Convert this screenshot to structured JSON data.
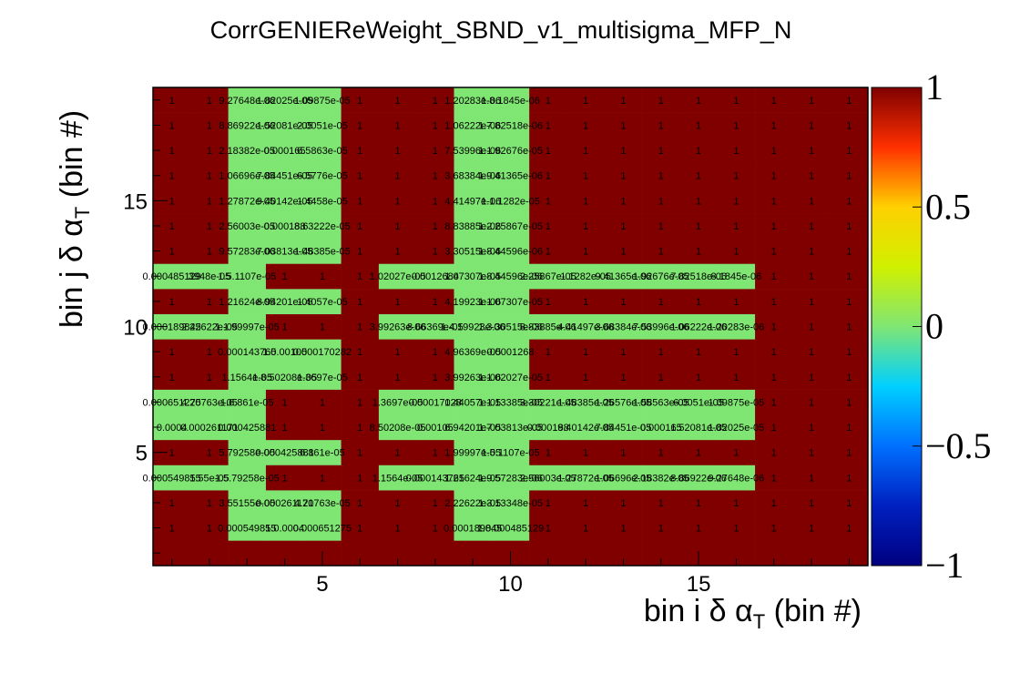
{
  "chart_data": {
    "type": "heatmap",
    "title": "CorrGENIEReWeight_SBND_v1_multisigma_MFP_N",
    "xlabel": "bin i δ α_T (bin #)",
    "ylabel": "bin j δ α_T (bin #)",
    "xlim": [
      0.5,
      19.5
    ],
    "ylim": [
      0.5,
      19.5
    ],
    "zlim": [
      -1,
      1
    ],
    "x_ticks": [
      5,
      10,
      15
    ],
    "y_ticks": [
      5,
      10,
      15
    ],
    "colorbar_ticks": [
      "1",
      "0.5",
      "0",
      "−0.5",
      "−1"
    ],
    "colorbar_tick_values": [
      1,
      0.5,
      0,
      -0.5,
      -1
    ],
    "colors": {
      "high": "#800000",
      "low_abs": "#80e673"
    },
    "rows": [
      {
        "bin": 19,
        "cells": [
          "1",
          "1",
          "9.27648e-06",
          "1.82025e-05",
          "1.09875e-05",
          "1",
          "1",
          "1",
          "1.20283e-06",
          "1.8.1845e-06",
          "1",
          "1",
          "1",
          "1",
          "1",
          "1",
          "1",
          "1",
          "1"
        ]
      },
      {
        "bin": 18,
        "cells": [
          "1",
          "1",
          "8.86922e-06",
          "1.52081e-05",
          "2.0051e-05",
          "1",
          "1",
          "1",
          "1.06222e-06",
          "1.7.82518e-06",
          "1",
          "1",
          "1",
          "1",
          "1",
          "1",
          "1",
          "1",
          "1"
        ]
      },
      {
        "bin": 17,
        "cells": [
          "1",
          "1",
          "2.18382e-05",
          "0.000165",
          "6.5863e-05",
          "1",
          "1",
          "1",
          "7.53996e-06",
          "1.1.92676e-05",
          "1",
          "1",
          "1",
          "1",
          "1",
          "1",
          "1",
          "1",
          "1"
        ]
      },
      {
        "bin": 16,
        "cells": [
          "1",
          "1",
          "1.06696e-05",
          "7.84451e-05",
          "6.5776e-05",
          "1",
          "1",
          "1",
          "3.68384e-06",
          "1.9.41365e-06",
          "1",
          "1",
          "1",
          "1",
          "1",
          "1",
          "1",
          "1",
          "1"
        ]
      },
      {
        "bin": 15,
        "cells": [
          "1",
          "1",
          "1.27872e-05",
          "9.40142e-05",
          "1.4458e-05",
          "1",
          "1",
          "1",
          "4.41497e-06",
          "1.1.1282e-05",
          "1",
          "1",
          "1",
          "1",
          "1",
          "1",
          "1",
          "1",
          "1"
        ]
      },
      {
        "bin": 14,
        "cells": [
          "1",
          "1",
          "2.56003e-05",
          "0.000188",
          "8.63222e-05",
          "1",
          "1",
          "1",
          "8.83885e-06",
          "1.2.25867e-05",
          "1",
          "1",
          "1",
          "1",
          "1",
          "1",
          "1",
          "1",
          "1"
        ]
      },
      {
        "bin": 13,
        "cells": [
          "1",
          "1",
          "9.57283e-06",
          "7.03813e-05",
          "1.48385e-05",
          "1",
          "1",
          "1",
          "3.30515e-06",
          "1.8.44596e-06",
          "1",
          "1",
          "1",
          "1",
          "1",
          "1",
          "1",
          "1",
          "1"
        ]
      },
      {
        "bin": 12,
        "cells": [
          "0.000485129",
          "3948e-05",
          "1.5.1107e-05",
          "1",
          "1",
          "1",
          "1.02027e-05",
          "0.0012684",
          "1.07307e-05",
          "1.8.44596e-06",
          "2.25867e-05",
          "1.1282e-05",
          "9.41365e-06",
          "1.92676e-05",
          "7.82518e-06",
          "8.1845e-06",
          "1",
          "1",
          "1"
        ]
      },
      {
        "bin": 11,
        "cells": [
          "1",
          "1",
          "1.21624e-05",
          "8.94201e-05",
          "1.4057e-05",
          "1",
          "1",
          "1",
          "4.19923e-06",
          "1.1.07307e-05",
          "1",
          "1",
          "1",
          "1",
          "1",
          "1",
          "1",
          "1",
          "1"
        ]
      },
      {
        "bin": 10,
        "cells": [
          "0.000189845",
          "2.22622e-05",
          "1.1.99997e-05",
          "1",
          "1",
          "1",
          "3.99263e-06",
          "8.66369e-05",
          "1.4.19923e-06",
          "1.3.30515e-06",
          "8.83885e-06",
          "4.41497e-06",
          "3.68384e-06",
          "7.53996e-06",
          "1.06222e-06",
          "1.20283e-06",
          "1",
          "1",
          "1"
        ]
      },
      {
        "bin": 9,
        "cells": [
          "1",
          "1",
          "0.000143765",
          "1.0.00105",
          "0.000170282",
          "1",
          "1",
          "1",
          "4.96369e-05",
          "0.0001268",
          "1",
          "1",
          "1",
          "1",
          "1",
          "1",
          "1",
          "1",
          "1"
        ]
      },
      {
        "bin": 8,
        "cells": [
          "1",
          "1",
          "1.1564e-05",
          "1.8.50208e-05",
          "1.3697e-05",
          "1",
          "1",
          "1",
          "3.99263e-06",
          "1.1.02027e-05",
          "1",
          "1",
          "1",
          "1",
          "1",
          "1",
          "1",
          "1",
          "1"
        ]
      },
      {
        "bin": 7,
        "cells": [
          "0.000651275",
          "4.20763e-05",
          "1.6.861e-05",
          "1",
          "1",
          "1",
          "1.3697e-05",
          "0.00017028",
          "1.44057e-05",
          "1.1.13385e-05",
          "3.30221e-05",
          "1.48385e-05",
          "1.26576e-05",
          "1.58563e-05",
          "6.0051e-05",
          "1.09875e-05",
          "1",
          "1",
          "1"
        ]
      },
      {
        "bin": 6,
        "cells": [
          "0.0004",
          "0.000261171",
          "0.000425881",
          "1",
          "1",
          "1",
          "8.50208e-05",
          "0.00105",
          "6.94201e-05",
          "1.7.03813e-05",
          "0.000188",
          "9.40142e-05",
          "7.84451e-05",
          "0.000165",
          "1.52081e-05",
          "1.82025e-05",
          "1",
          "1",
          "1"
        ]
      },
      {
        "bin": 5,
        "cells": [
          "1",
          "1",
          "5.79258e-05",
          "0.000425881",
          "6.861e-05",
          "1",
          "1",
          "1",
          "1.99997e-05",
          "1.5.1107e-05",
          "1",
          "1",
          "1",
          "1",
          "1",
          "1",
          "1",
          "1",
          "1"
        ]
      },
      {
        "bin": 4,
        "cells": [
          "0.000549855",
          "1.55e-05",
          "1.5.79258e-05",
          "1",
          "1",
          "1",
          "1.1564e-05",
          "0.000143765",
          "1.21624e-05",
          "1.9.57283e-06",
          "2.56003e-05",
          "1.27872e-05",
          "1.06696e-05",
          "2.18382e-05",
          "8.86922e-06",
          "9.27648e-06",
          "1",
          "1",
          "1"
        ]
      },
      {
        "bin": 3,
        "cells": [
          "1",
          "1",
          "3.55155e-05",
          "0.000261171",
          "4.20763e-05",
          "1",
          "1",
          "1",
          "2.22622e-05",
          "1.3.13348e-05",
          "1",
          "1",
          "1",
          "1",
          "1",
          "1",
          "1",
          "1",
          "1"
        ]
      },
      {
        "bin": 2,
        "cells": [
          "1",
          "1",
          "0.000549855",
          "1.0.0004",
          "0.000651275",
          "1",
          "1",
          "1",
          "0.000189845",
          "1.0.000485129",
          "1",
          "1",
          "1",
          "1",
          "1",
          "1",
          "1",
          "1",
          "1"
        ]
      }
    ]
  }
}
